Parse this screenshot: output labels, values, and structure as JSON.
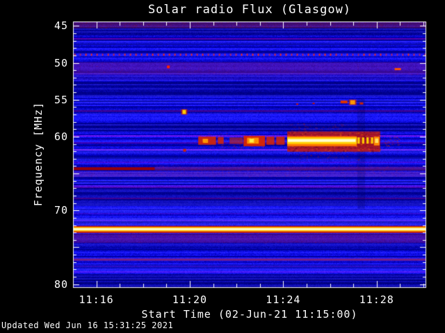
{
  "window": {
    "background": "#000000",
    "text_color": "#ffffff"
  },
  "chart_data": {
    "type": "heatmap",
    "subtype": "solar-radio-spectrogram",
    "title": "Solar radio Flux (Glasgow)",
    "xlabel": "Start Time (02-Jun-21 11:15:00)",
    "ylabel": "Frequency [MHz]",
    "updated_note": "Updated Wed Jun 16 15:31:25 2021",
    "site": "Glasgow",
    "start_date": "02-Jun-21",
    "start_time": "11:15:00",
    "x_axis": {
      "unit": "minutes since 11:15:00",
      "range_minutes": [
        0,
        15.12
      ],
      "minor_step_minutes": 1,
      "ticks_labeled": [
        {
          "label": "11:16",
          "minute": 1
        },
        {
          "label": "11:20",
          "minute": 5
        },
        {
          "label": "11:24",
          "minute": 9
        },
        {
          "label": "11:28",
          "minute": 13
        }
      ],
      "major_tick_minutes": [
        1,
        5,
        9,
        13
      ]
    },
    "y_axis": {
      "unit": "MHz",
      "range": [
        44.4,
        80.5
      ],
      "inverted": true,
      "labeled_ticks": [
        45,
        50,
        55,
        60,
        70,
        80
      ],
      "major_ticks": [
        45,
        50,
        55,
        60,
        65,
        70,
        75,
        80
      ],
      "minor_step": 1
    },
    "palette": {
      "bg": "#000000",
      "frame": "#ffffff",
      "base_blue": "#1515d8",
      "rfi_red": "#ff2800",
      "burst_core": "#ffffcc",
      "burst_yellow": "#ffd000",
      "burst_orange": "#ff7700",
      "carrier_core": "#ffffcc"
    },
    "background_bands": [
      {
        "f1": 44.4,
        "f2": 45.3,
        "color": "rgba(140,25,45,0.45)",
        "speckle": 0.6
      },
      {
        "f1": 45.3,
        "f2": 46.3,
        "color": "rgba(0,0,40,0.30)"
      },
      {
        "f1": 47.0,
        "f2": 47.6,
        "color": "rgba(70,70,255,0.15)"
      },
      {
        "f1": 49.9,
        "f2": 51.6,
        "color": "rgba(140,20,110,0.38)",
        "speckle": 0.4
      },
      {
        "f1": 51.6,
        "f2": 52.4,
        "color": "rgba(70,10,80,0.22)"
      },
      {
        "f1": 52.6,
        "f2": 54.6,
        "color": "rgba(0,0,50,0.26)"
      },
      {
        "f1": 55.0,
        "f2": 55.5,
        "color": "rgba(80,80,255,0.16)"
      },
      {
        "f1": 56.3,
        "f2": 56.9,
        "color": "rgba(0,0,40,0.18)"
      },
      {
        "f1": 58.2,
        "f2": 59.4,
        "color": "rgba(0,0,45,0.24)"
      },
      {
        "f1": 61.6,
        "f2": 62.3,
        "color": "rgba(90,90,255,0.20)"
      },
      {
        "f1": 62.8,
        "f2": 63.4,
        "color": "rgba(90,90,255,0.16)"
      },
      {
        "f1": 64.75,
        "f2": 65.45,
        "color": "rgba(150,40,110,0.30)",
        "speckle": 0.5
      },
      {
        "f1": 65.9,
        "f2": 66.4,
        "color": "rgba(100,100,255,0.14)"
      },
      {
        "f1": 66.8,
        "f2": 69.4,
        "color": "rgba(0,0,50,0.28)"
      },
      {
        "f1": 69.7,
        "f2": 70.4,
        "color": "rgba(90,90,255,0.18)"
      },
      {
        "f1": 71.0,
        "f2": 72.05,
        "color": "rgba(110,110,255,0.20)"
      },
      {
        "f1": 73.15,
        "f2": 74.4,
        "color": "rgba(130,15,80,0.42)",
        "speckle": 0.4
      },
      {
        "f1": 74.4,
        "f2": 75.2,
        "color": "rgba(0,0,40,0.20)"
      },
      {
        "f1": 76.5,
        "f2": 76.85,
        "color": "rgba(150,40,120,0.45)"
      },
      {
        "f1": 77.2,
        "f2": 78.3,
        "color": "rgba(80,80,255,0.15)"
      },
      {
        "f1": 78.6,
        "f2": 80.5,
        "color": "rgba(0,0,55,0.32)"
      },
      {
        "t1": 12.17,
        "t2": 12.5,
        "f1": 54.8,
        "f2": 69.8,
        "color": "rgba(0,0,80,0.22)"
      }
    ],
    "rfi_dot_row": {
      "frequency_mhz": 48.85,
      "t_step_minutes": 0.238,
      "dot_w": 2,
      "dot_h": 3,
      "color": "#ff2800",
      "description": "periodic interference dots across full time range near 49 MHz"
    },
    "spectral_lines": [
      {
        "name": "64.3 MHz interference, strong segment",
        "f1": 64.15,
        "f2": 64.55,
        "t1": 0,
        "t2": 3.5,
        "color": "rgba(155,0,0,0.95)"
      },
      {
        "name": "64.3 MHz interference, weak segment",
        "f1": 64.1,
        "f2": 64.6,
        "t1": 3.5,
        "t2": 15.12,
        "color": "rgba(150,30,100,0.45)",
        "speckle": 0.5
      },
      {
        "name": "72.5 MHz carrier outer",
        "f1": 72.1,
        "f2": 73.05,
        "t1": 0,
        "t2": 15.12,
        "color": "#cc2200"
      },
      {
        "name": "72.5 MHz carrier mid",
        "f1": 72.25,
        "f2": 72.85,
        "t1": 0,
        "t2": 15.12,
        "color": "#ffbb00"
      },
      {
        "name": "72.5 MHz carrier core",
        "f1": 72.4,
        "f2": 72.68,
        "t1": 0,
        "t2": 15.12,
        "color": "#ffffcc"
      },
      {
        "name": "76.6 MHz faint line",
        "f1": 76.55,
        "f2": 76.78,
        "t1": 0,
        "t2": 15.12,
        "color": "rgba(170,40,120,0.5)"
      }
    ],
    "burst_elements": [
      {
        "type": "fill",
        "t1": 5.36,
        "t2": 6.12,
        "f1": 60.0,
        "f2": 61.1,
        "color": "rgba(215,40,0,0.9)"
      },
      {
        "type": "fill",
        "t1": 5.55,
        "t2": 5.78,
        "f1": 60.3,
        "f2": 60.85,
        "color": "#ff9900"
      },
      {
        "type": "fill",
        "t1": 6.2,
        "t2": 6.45,
        "f1": 60.05,
        "f2": 61.0,
        "color": "rgba(215,40,0,0.85)"
      },
      {
        "type": "fill",
        "t1": 6.7,
        "t2": 7.27,
        "f1": 60.1,
        "f2": 61.0,
        "color": "rgba(200,40,10,0.6)"
      },
      {
        "type": "fill",
        "t1": 7.3,
        "t2": 8.22,
        "f1": 59.9,
        "f2": 61.3,
        "color": "rgba(220,40,0,0.95)"
      },
      {
        "type": "fill",
        "t1": 7.45,
        "t2": 7.95,
        "f1": 60.15,
        "f2": 60.95,
        "color": "#ff9100"
      },
      {
        "type": "fill",
        "t1": 7.55,
        "t2": 7.75,
        "f1": 60.3,
        "f2": 60.8,
        "color": "#ffee44"
      },
      {
        "type": "fill",
        "t1": 8.28,
        "t2": 8.62,
        "f1": 60.0,
        "f2": 61.1,
        "color": "rgba(215,40,0,0.85)"
      },
      {
        "type": "fill",
        "t1": 8.7,
        "t2": 9.06,
        "f1": 60.0,
        "f2": 61.1,
        "color": "rgba(215,40,0,0.85)"
      },
      {
        "type": "speckle",
        "t1": 5.3,
        "t2": 9.1,
        "f1": 59.5,
        "f2": 61.7,
        "color": "rgba(200,30,0,0.5)",
        "count": 120
      },
      {
        "type": "fill",
        "t1": 9.17,
        "t2": 13.15,
        "f1": 59.3,
        "f2": 62.05,
        "color": "rgba(195,25,5,0.82)"
      },
      {
        "type": "speckle",
        "t1": 9.17,
        "t2": 13.15,
        "f1": 59.3,
        "f2": 62.05,
        "color": "rgba(90,0,40,0.8)",
        "count": 260
      },
      {
        "type": "speckle",
        "t1": 9.17,
        "t2": 13.15,
        "f1": 59.3,
        "f2": 62.05,
        "color": "rgba(255,130,0,0.6)",
        "count": 160
      },
      {
        "type": "fill",
        "t1": 9.17,
        "t2": 12.15,
        "f1": 59.95,
        "f2": 61.3,
        "color": "#ff7700"
      },
      {
        "type": "fill",
        "t1": 9.17,
        "t2": 12.15,
        "f1": 60.1,
        "f2": 61.0,
        "color": "#ffd000"
      },
      {
        "type": "fill",
        "t1": 9.2,
        "t2": 12.1,
        "f1": 60.33,
        "f2": 60.72,
        "color": "#ffffcc"
      },
      {
        "type": "dashes",
        "t1": 12.18,
        "t2": 12.85,
        "f1": 60.1,
        "f2": 60.95,
        "color": "#ffcc00",
        "n": 4
      },
      {
        "type": "fill",
        "t1": 12.88,
        "t2": 13.12,
        "f1": 60.0,
        "f2": 61.2,
        "color": "#ff8800"
      },
      {
        "type": "fill",
        "t1": 12.93,
        "t2": 13.07,
        "f1": 60.25,
        "f2": 60.85,
        "color": "#ffe066"
      },
      {
        "type": "speckle",
        "t1": 13.2,
        "t2": 14.0,
        "f1": 59.9,
        "f2": 61.3,
        "color": "rgba(210,40,0,0.7)",
        "count": 40
      },
      {
        "type": "speckle",
        "t1": 9.2,
        "t2": 12.3,
        "f1": 58.2,
        "f2": 59.3,
        "color": "rgba(190,30,0,0.45)",
        "count": 70
      },
      {
        "type": "speckle",
        "t1": 9.2,
        "t2": 12.4,
        "f1": 62.05,
        "f2": 63.2,
        "color": "rgba(190,30,0,0.45)",
        "count": 60
      }
    ],
    "spots": [
      {
        "t": 4.08,
        "f": 50.55,
        "w": 4,
        "h": 4,
        "color": "#ff2200"
      },
      {
        "t": 4.76,
        "f": 56.65,
        "w": 5,
        "h": 6,
        "color": "#ffcc00",
        "halo": "#cc2200"
      },
      {
        "t": 4.78,
        "f": 61.85,
        "w": 4,
        "h": 4,
        "color": "#cc2200"
      },
      {
        "t": 9.6,
        "f": 55.6,
        "w": 3,
        "h": 2,
        "color": "#bb1100"
      },
      {
        "t": 10.3,
        "f": 55.5,
        "w": 3,
        "h": 2,
        "color": "#bb1100"
      },
      {
        "t": 11.6,
        "f": 55.3,
        "w": 10,
        "h": 4,
        "color": "#dd3300"
      },
      {
        "t": 11.97,
        "f": 55.35,
        "w": 7,
        "h": 6,
        "color": "#ff9900",
        "halo": "#cc2200"
      },
      {
        "t": 12.35,
        "f": 55.5,
        "w": 5,
        "h": 3,
        "color": "#cc2200"
      },
      {
        "t": 13.9,
        "f": 50.85,
        "w": 9,
        "h": 3,
        "color": "#ff5500"
      }
    ]
  }
}
